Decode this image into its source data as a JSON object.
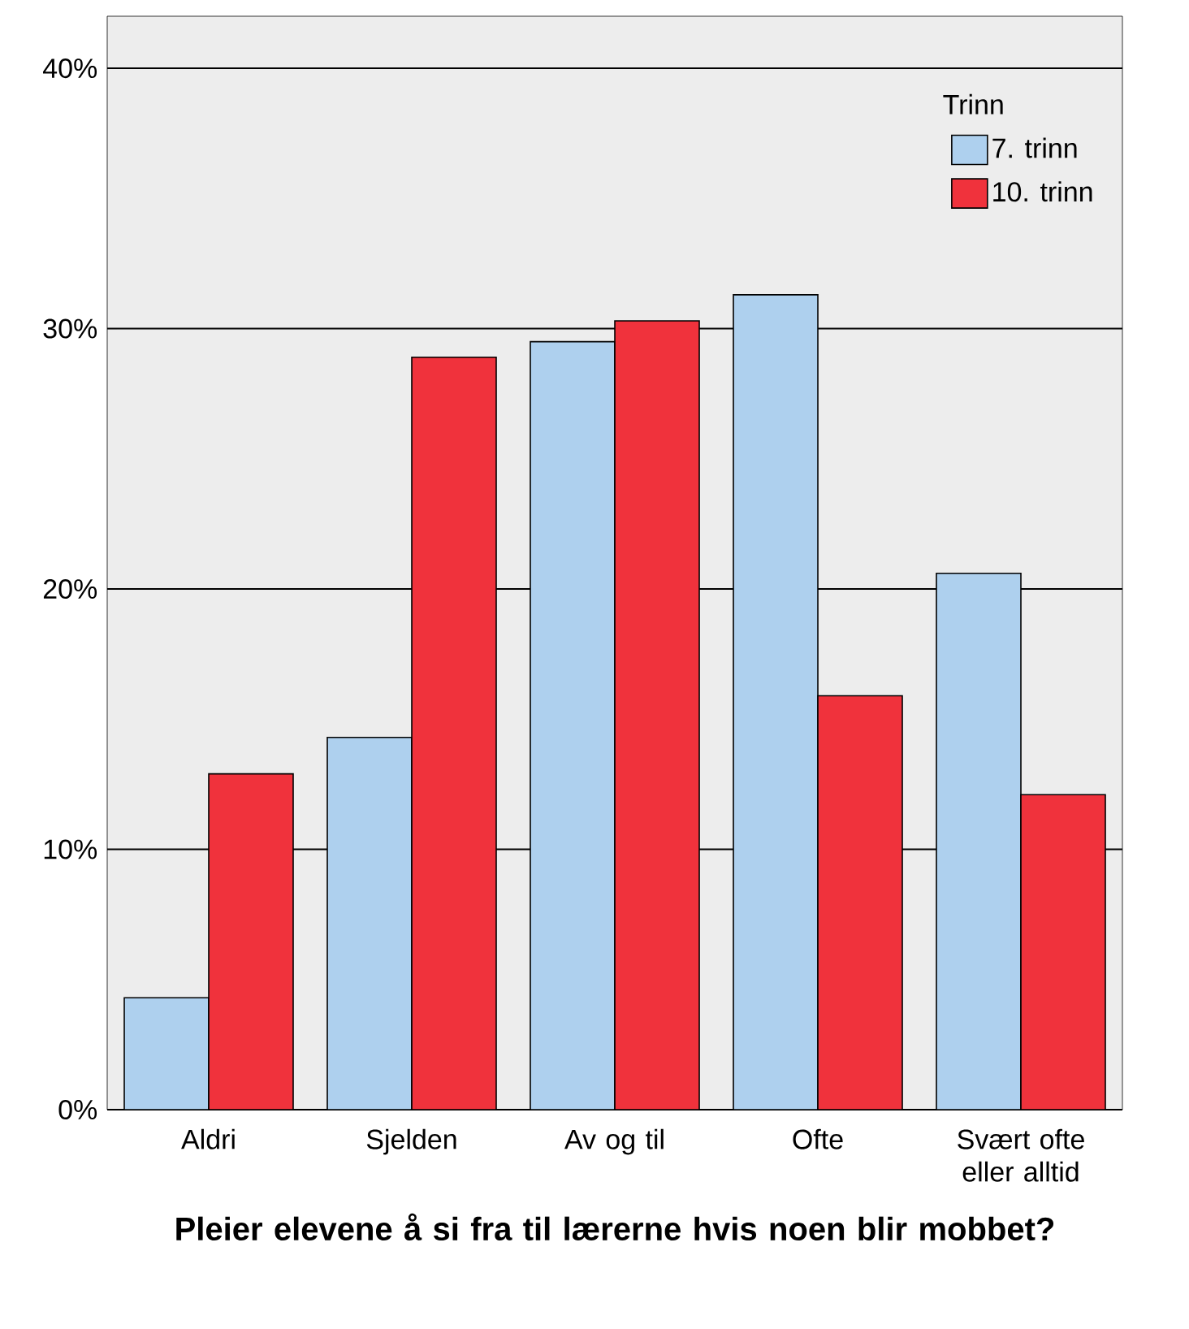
{
  "chart_data": {
    "type": "bar",
    "xlabel": "Pleier elevene å si fra til lærerne hvis noen blir mobbet?",
    "legend_title": "Trinn",
    "categories": [
      "Aldri",
      "Sjelden",
      "Av og til",
      "Ofte",
      "Svært ofte eller alltid"
    ],
    "series": [
      {
        "name": "7. trinn",
        "color": "#aed0ee",
        "values": [
          4.3,
          14.3,
          29.5,
          31.3,
          20.6
        ]
      },
      {
        "name": "10. trinn",
        "color": "#f0323c",
        "values": [
          12.9,
          28.9,
          30.3,
          15.9,
          12.1
        ]
      }
    ],
    "ylim": [
      0,
      42
    ],
    "yticks": [
      {
        "value": 0,
        "label": "0%"
      },
      {
        "value": 10,
        "label": "10%"
      },
      {
        "value": 20,
        "label": "20%"
      },
      {
        "value": 30,
        "label": "30%"
      },
      {
        "value": 40,
        "label": "40%"
      }
    ],
    "grid": "y",
    "legend": "top right"
  }
}
